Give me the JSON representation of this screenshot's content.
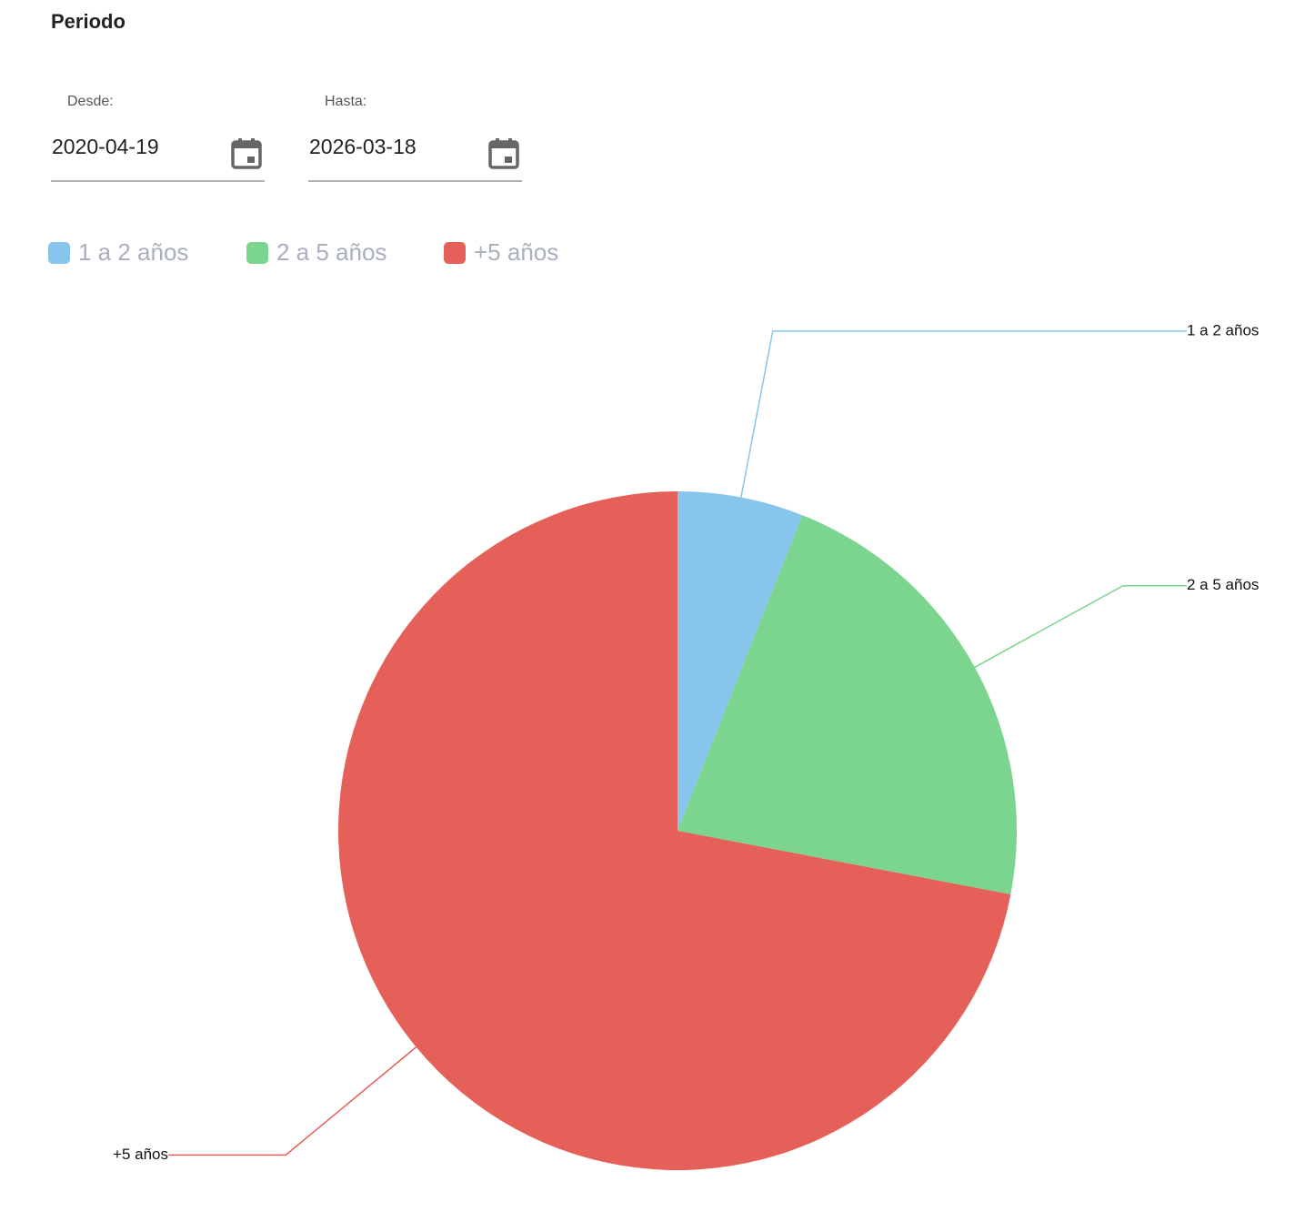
{
  "header": {
    "title": "Periodo"
  },
  "form": {
    "from_label": "Desde:",
    "from_value": "2020-04-19",
    "to_label": "Hasta:",
    "to_value": "2026-03-18"
  },
  "chart_data": {
    "type": "pie",
    "categories": [
      "1 a 2 años",
      "2 a 5 años",
      "+5 años"
    ],
    "values": [
      6,
      22,
      72
    ],
    "colors": [
      "#88c5ec",
      "#7bd58e",
      "#e6605a"
    ],
    "legend": "top-left"
  }
}
